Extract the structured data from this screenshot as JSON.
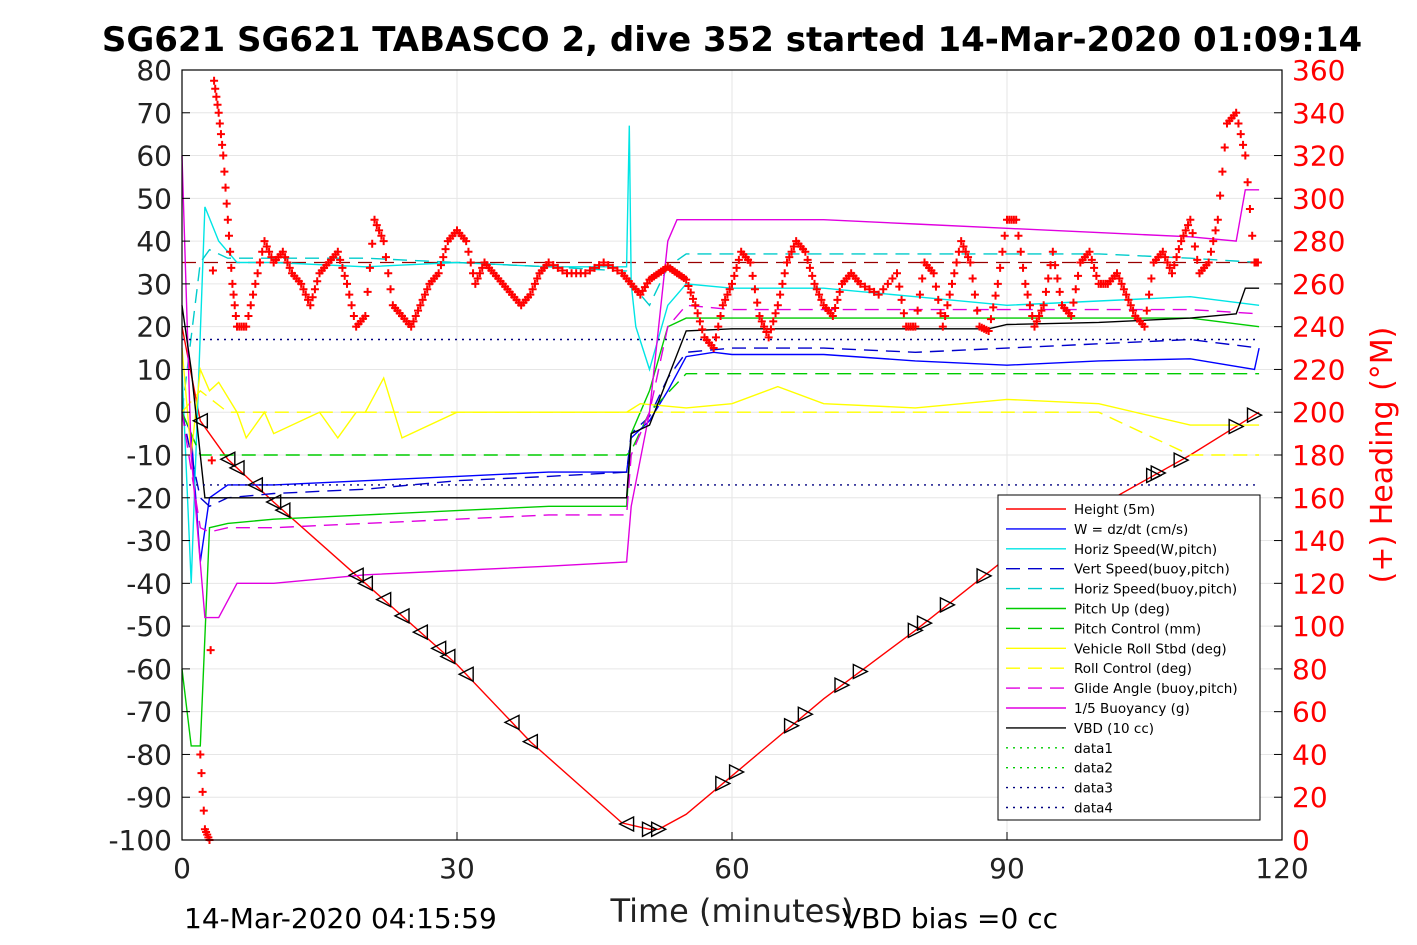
{
  "chart_data": {
    "type": "line",
    "title": "SG621 SG621 TABASCO 2, dive 352 started 14-Mar-2020 01:09:14",
    "xlabel": "Time (minutes)",
    "ylabel_right": "(+) Heading (°M)",
    "footer_left": "14-Mar-2020 04:15:59",
    "footer_right": "VBD bias =0 cc",
    "xlim": [
      0,
      120
    ],
    "ylim_left": [
      -100,
      80
    ],
    "ylim_right": [
      0,
      360
    ],
    "x_ticks": [
      "0",
      "30",
      "60",
      "90",
      "120"
    ],
    "y_ticks_left": [
      "80",
      "70",
      "60",
      "50",
      "40",
      "30",
      "20",
      "10",
      "0",
      "-10",
      "-20",
      "-30",
      "-40",
      "-50",
      "-60",
      "-70",
      "-80",
      "-90",
      "-100"
    ],
    "y_ticks_right": [
      "360",
      "340",
      "320",
      "300",
      "280",
      "260",
      "240",
      "220",
      "200",
      "180",
      "160",
      "140",
      "120",
      "100",
      "80",
      "60",
      "40",
      "20",
      "0"
    ],
    "grid": true,
    "legend_position": "lower-right",
    "series": [
      {
        "name": "Height (5m)",
        "color": "#ff0000",
        "style": "solid",
        "axis": "left",
        "x": [
          0,
          2,
          5,
          10,
          20,
          30,
          38,
          48,
          51,
          52,
          55,
          60,
          70,
          80,
          90,
          100,
          110,
          117.5
        ],
        "y": [
          20,
          -2,
          -11,
          -21,
          -40,
          -59,
          -77,
          -96,
          -97.5,
          -97.5,
          -94,
          -85,
          -67,
          -51,
          -34,
          -22,
          -10,
          0
        ]
      },
      {
        "name": "W = dz/dt (cm/s)",
        "color": "#0000ff",
        "style": "solid",
        "axis": "left",
        "x": [
          0,
          1,
          2,
          3,
          5,
          10,
          20,
          30,
          40,
          48.5,
          49,
          51,
          53,
          55,
          58,
          60,
          70,
          80,
          90,
          100,
          110,
          117,
          117.5
        ],
        "y": [
          0,
          -5,
          -35,
          -20,
          -17,
          -17,
          -16,
          -15,
          -14,
          -14,
          -6,
          -2,
          5,
          13,
          14,
          13.5,
          13.5,
          12,
          11,
          12,
          12.5,
          10,
          15
        ]
      },
      {
        "name": "Horiz Speed(W,pitch)",
        "color": "#00e5e5",
        "style": "solid",
        "axis": "left",
        "x": [
          0,
          1,
          2.5,
          4,
          6,
          10,
          20,
          30,
          40,
          48.5,
          48.8,
          49,
          49.5,
          51,
          53,
          55,
          60,
          70,
          80,
          90,
          100,
          110,
          117.5
        ],
        "y": [
          10,
          -40,
          48,
          40,
          35,
          35,
          34,
          35,
          34,
          34,
          67,
          30,
          20,
          10,
          25,
          30,
          29,
          29,
          27,
          25,
          26,
          27,
          25
        ]
      },
      {
        "name": "Vert Speed(buoy,pitch)",
        "color": "#0000cc",
        "style": "dashed",
        "axis": "left",
        "x": [
          0,
          2,
          3,
          5,
          10,
          20,
          30,
          40,
          48.5,
          49,
          51,
          53,
          55,
          60,
          70,
          80,
          90,
          100,
          110,
          117.5
        ],
        "y": [
          0,
          -20,
          -22,
          -20,
          -19,
          -18,
          -16,
          -15,
          -14,
          -5,
          -1,
          8,
          14,
          15,
          15,
          14,
          15,
          16,
          17,
          15
        ]
      },
      {
        "name": "Horiz Speed(buoy,pitch)",
        "color": "#00cccc",
        "style": "dashed",
        "axis": "left",
        "x": [
          0,
          2,
          3,
          5,
          10,
          20,
          30,
          40,
          48.5,
          49,
          51,
          53,
          55,
          60,
          70,
          80,
          90,
          100,
          110,
          117.5
        ],
        "y": [
          0,
          35,
          38,
          36,
          36,
          36,
          35,
          34,
          33,
          30,
          25,
          34,
          37,
          37,
          37,
          37,
          37,
          37,
          36,
          35
        ]
      },
      {
        "name": "Pitch Up (deg)",
        "color": "#00cc00",
        "style": "solid",
        "axis": "left",
        "x": [
          0,
          1,
          2,
          3,
          5,
          10,
          20,
          30,
          40,
          48.5,
          49,
          51,
          53,
          55,
          60,
          70,
          80,
          90,
          100,
          110,
          117.5
        ],
        "y": [
          -60,
          -78,
          -78,
          -27,
          -26,
          -25,
          -24,
          -23,
          -22,
          -22,
          -5,
          5,
          20,
          22,
          22,
          22,
          22,
          22,
          22,
          22,
          20
        ]
      },
      {
        "name": "Pitch Control (mm)",
        "color": "#00cc00",
        "style": "dashed",
        "axis": "left",
        "x": [
          0,
          2,
          3,
          48.5,
          49,
          51,
          55,
          117.5
        ],
        "y": [
          0,
          -10,
          -10,
          -10,
          -9,
          0,
          9,
          9
        ]
      },
      {
        "name": "Vehicle Roll Stbd (deg)",
        "color": "#ffff00",
        "style": "solid",
        "axis": "left",
        "x": [
          0,
          1,
          2,
          3,
          4,
          6,
          7,
          9,
          10,
          15,
          17,
          19,
          20,
          22,
          24,
          30,
          40,
          48.5,
          50,
          55,
          60,
          65,
          70,
          80,
          90,
          100,
          110,
          117.5
        ],
        "y": [
          15,
          -10,
          10,
          5,
          7,
          0,
          -6,
          0,
          -5,
          0,
          -6,
          0,
          0,
          8,
          -6,
          0,
          0,
          0,
          2,
          1,
          2,
          6,
          2,
          1,
          3,
          2,
          -3,
          -3
        ]
      },
      {
        "name": "Roll Control (deg)",
        "color": "#ffff00",
        "style": "dashed",
        "axis": "left",
        "x": [
          0,
          2,
          5,
          10,
          20,
          30,
          40,
          48.5,
          50,
          60,
          70,
          80,
          90,
          100,
          110,
          117.5
        ],
        "y": [
          0,
          5,
          0,
          0,
          0,
          0,
          0,
          0,
          0,
          0,
          0,
          0,
          0,
          0,
          -10,
          -10
        ]
      },
      {
        "name": "Glide Angle (buoy,pitch)",
        "color": "#e000e0",
        "style": "dashed",
        "axis": "left",
        "x": [
          0,
          2,
          3,
          5,
          10,
          20,
          30,
          40,
          48.5,
          49,
          51,
          53,
          55,
          60,
          70,
          80,
          90,
          100,
          110,
          117.5
        ],
        "y": [
          0,
          -27,
          -28,
          -27,
          -27,
          -26,
          -25,
          -24,
          -24,
          -10,
          0,
          20,
          25,
          24,
          24,
          24,
          24,
          24,
          24,
          23
        ]
      },
      {
        "name": "1/5 Buoyancy (g)",
        "color": "#e000e0",
        "style": "solid",
        "axis": "left",
        "x": [
          0,
          1,
          2.5,
          4,
          6,
          10,
          20,
          30,
          40,
          48.5,
          49,
          51,
          53,
          54,
          60,
          70,
          80,
          90,
          100,
          110,
          115,
          116,
          117.5
        ],
        "y": [
          60,
          -10,
          -48,
          -48,
          -40,
          -40,
          -38,
          -37,
          -36,
          -35,
          -22,
          0,
          40,
          45,
          45,
          45,
          44,
          43,
          42,
          41,
          40,
          52,
          52
        ]
      },
      {
        "name": "VBD (10 cc)",
        "color": "#000000",
        "style": "solid",
        "axis": "left",
        "x": [
          0,
          1,
          2,
          2.5,
          10,
          20,
          30,
          40,
          48.5,
          49,
          51,
          55,
          60,
          70,
          80,
          88,
          90,
          100,
          110,
          115,
          116,
          117.5
        ],
        "y": [
          25,
          10,
          -10,
          -20,
          -20,
          -20,
          -20,
          -20,
          -20,
          -5,
          -3,
          19,
          19.5,
          19.5,
          19.5,
          19.5,
          20.5,
          21,
          22,
          23,
          29,
          29
        ]
      },
      {
        "name": "data1",
        "color": "#00cc00",
        "style": "dotted",
        "axis": "left",
        "x": [],
        "y": []
      },
      {
        "name": "data2",
        "color": "#00cc00",
        "style": "dotted",
        "axis": "left",
        "x": [],
        "y": []
      },
      {
        "name": "data3",
        "color": "#000080",
        "style": "dotted",
        "axis": "left",
        "x": [
          0,
          117.5
        ],
        "y": [
          -17,
          -17
        ]
      },
      {
        "name": "data4",
        "color": "#000080",
        "style": "dotted",
        "axis": "left",
        "x": [
          0,
          117.5
        ],
        "y": [
          17,
          17
        ]
      }
    ],
    "reference_line": {
      "color": "#990000",
      "style": "dashed",
      "axis": "left",
      "y": 35
    },
    "heading": {
      "color": "#ff0000",
      "marker": "+",
      "axis": "right",
      "x": [
        2,
        2.5,
        3,
        3.5,
        4,
        4.5,
        5,
        5.5,
        6,
        7,
        8,
        9,
        10,
        11,
        12,
        13,
        14,
        15,
        16,
        17,
        18,
        19,
        20,
        21,
        22,
        23,
        24,
        25,
        26,
        27,
        28,
        29,
        30,
        31,
        32,
        33,
        34,
        35,
        36,
        37,
        38,
        39,
        40,
        42,
        44,
        46,
        48,
        49,
        50,
        51,
        52,
        53,
        54,
        55,
        56,
        57,
        58,
        59,
        60,
        61,
        62,
        63,
        64,
        65,
        66,
        67,
        68,
        69,
        70,
        71,
        72,
        73,
        74,
        76,
        78,
        79,
        80,
        81,
        82,
        83,
        84,
        85,
        86,
        87,
        88,
        89,
        90,
        91,
        92,
        93,
        94,
        95,
        96,
        97,
        98,
        99,
        100,
        101,
        102,
        103,
        104,
        105,
        106,
        107,
        108,
        109,
        110,
        111,
        112,
        113,
        114,
        115,
        116,
        117,
        117.5
      ],
      "y": [
        40,
        5,
        0,
        355,
        340,
        320,
        290,
        260,
        240,
        240,
        260,
        280,
        270,
        275,
        265,
        260,
        250,
        265,
        270,
        275,
        260,
        240,
        245,
        290,
        280,
        250,
        245,
        240,
        250,
        260,
        265,
        280,
        285,
        280,
        260,
        270,
        265,
        260,
        255,
        250,
        255,
        265,
        270,
        265,
        265,
        270,
        265,
        260,
        255,
        262,
        265,
        268,
        265,
        262,
        250,
        235,
        230,
        250,
        260,
        275,
        270,
        245,
        235,
        250,
        270,
        280,
        275,
        260,
        250,
        245,
        260,
        265,
        260,
        255,
        265,
        240,
        240,
        270,
        265,
        240,
        260,
        280,
        270,
        240,
        238,
        260,
        290,
        290,
        260,
        240,
        250,
        275,
        250,
        245,
        270,
        275,
        260,
        260,
        265,
        255,
        245,
        240,
        270,
        275,
        265,
        280,
        290,
        265,
        270,
        290,
        335,
        340,
        320,
        270,
        270
      ]
    }
  }
}
